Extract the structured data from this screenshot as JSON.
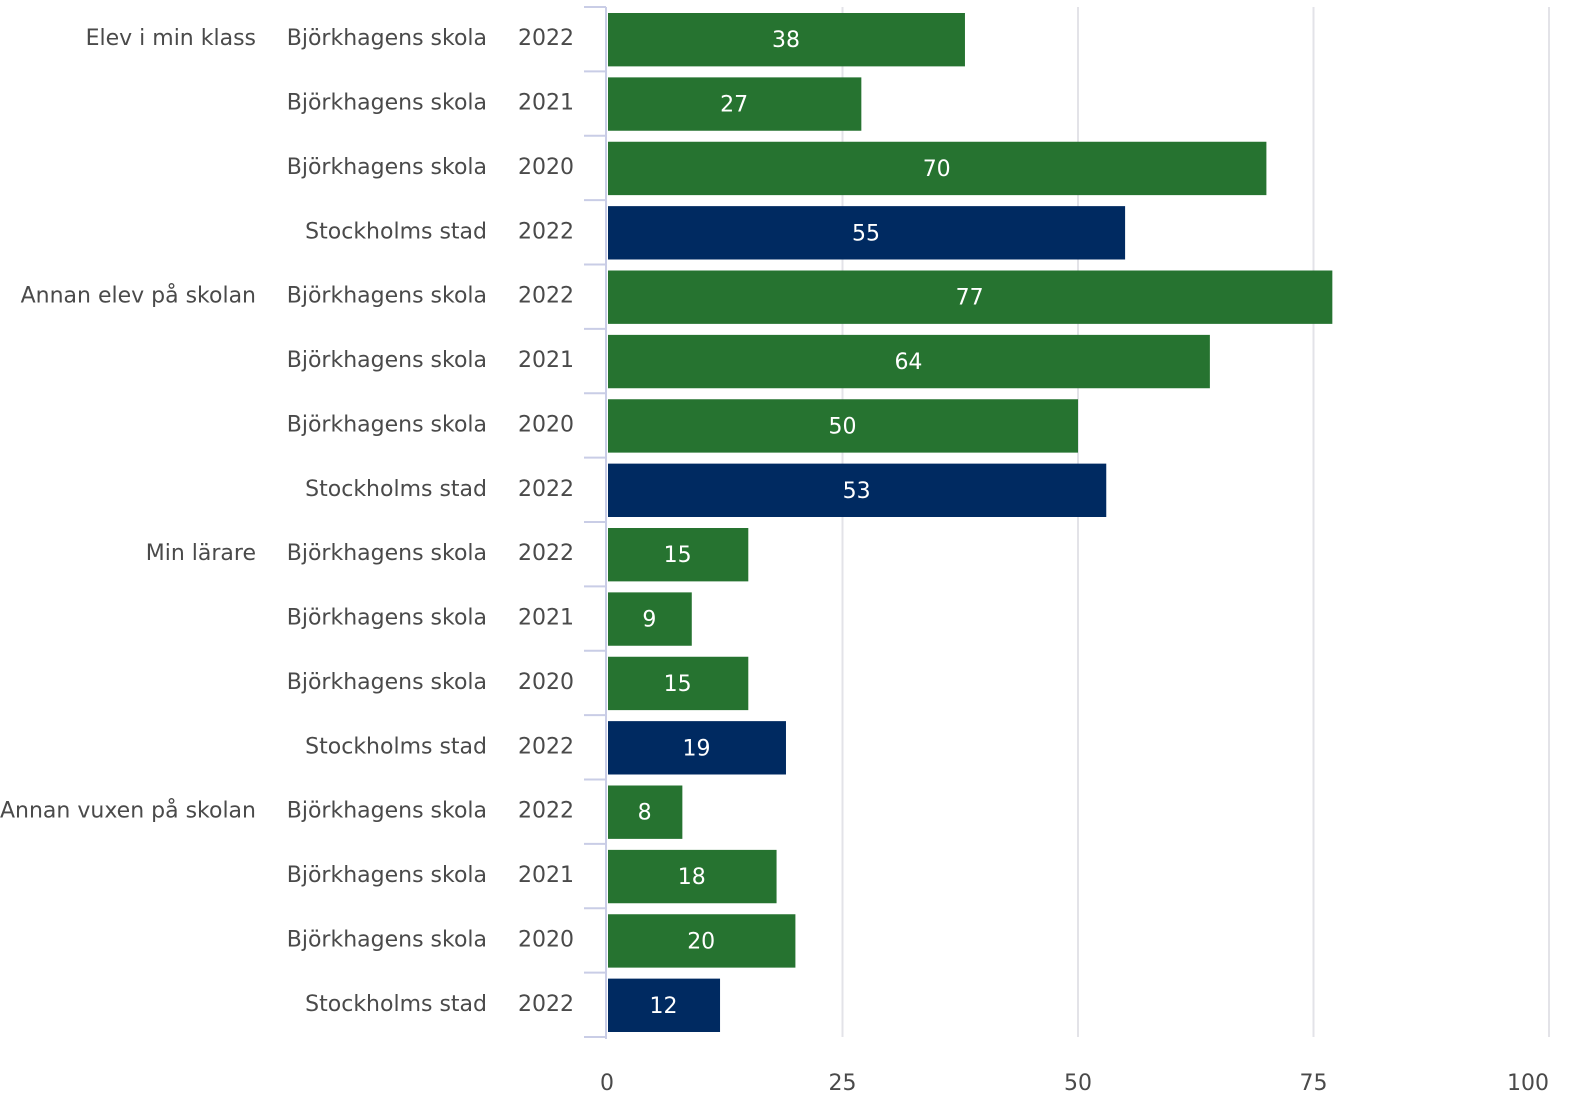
{
  "colors": {
    "school": "#267330",
    "city": "#002a61",
    "gridline": "#e3e3e8",
    "axis": "#c9cde6",
    "label": "#4a4a4a"
  },
  "chart_data": {
    "type": "bar",
    "orientation": "horizontal",
    "xlim": [
      0,
      100
    ],
    "xticks": [
      0,
      25,
      50,
      75,
      100
    ],
    "grid": true,
    "groups": [
      {
        "label": "Elev i min klass",
        "rows": [
          {
            "unit": "Björkhagens skola",
            "year": "2022",
            "value": 38
          },
          {
            "unit": "Björkhagens skola",
            "year": "2021",
            "value": 27
          },
          {
            "unit": "Björkhagens skola",
            "year": "2020",
            "value": 70
          },
          {
            "unit": "Stockholms stad",
            "year": "2022",
            "value": 55
          }
        ]
      },
      {
        "label": "Annan elev på skolan",
        "rows": [
          {
            "unit": "Björkhagens skola",
            "year": "2022",
            "value": 77
          },
          {
            "unit": "Björkhagens skola",
            "year": "2021",
            "value": 64
          },
          {
            "unit": "Björkhagens skola",
            "year": "2020",
            "value": 50
          },
          {
            "unit": "Stockholms stad",
            "year": "2022",
            "value": 53
          }
        ]
      },
      {
        "label": "Min lärare",
        "rows": [
          {
            "unit": "Björkhagens skola",
            "year": "2022",
            "value": 15
          },
          {
            "unit": "Björkhagens skola",
            "year": "2021",
            "value": 9
          },
          {
            "unit": "Björkhagens skola",
            "year": "2020",
            "value": 15
          },
          {
            "unit": "Stockholms stad",
            "year": "2022",
            "value": 19
          }
        ]
      },
      {
        "label": "Annan vuxen på skolan",
        "rows": [
          {
            "unit": "Björkhagens skola",
            "year": "2022",
            "value": 8
          },
          {
            "unit": "Björkhagens skola",
            "year": "2021",
            "value": 18
          },
          {
            "unit": "Björkhagens skola",
            "year": "2020",
            "value": 20
          },
          {
            "unit": "Stockholms stad",
            "year": "2022",
            "value": 12
          }
        ]
      }
    ]
  }
}
